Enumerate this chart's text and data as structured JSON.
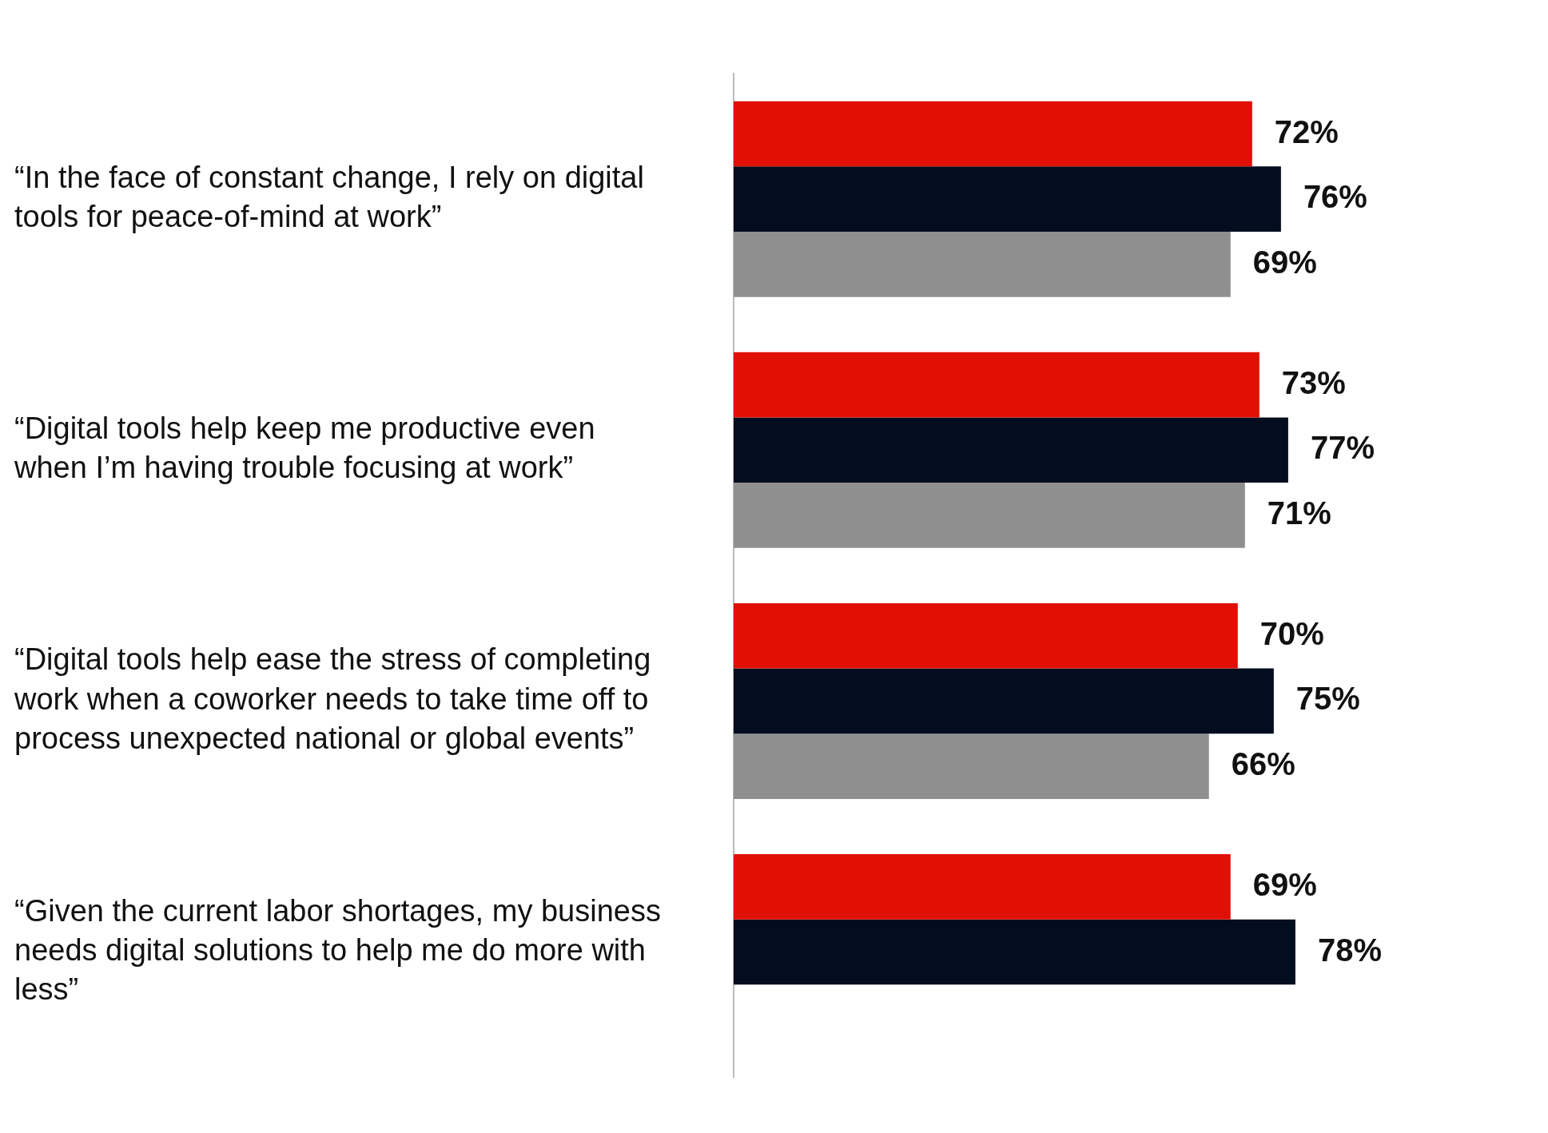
{
  "chart_data": {
    "type": "bar",
    "orientation": "horizontal",
    "categories": [
      "“In the face of constant change, I rely on digital tools for peace-of-mind at work”",
      "“Digital tools help keep me productive even when I’m having trouble focusing at work”",
      "“Digital tools help ease the stress of completing work when a coworker needs to take time off to process unexpected national or global events”",
      "“Given the current labor shortages, my business needs digital solutions to help me do more with less”"
    ],
    "series": [
      {
        "color": "#e01006",
        "values": [
          72,
          73,
          70,
          69
        ],
        "value_labels": [
          "72%",
          "73%",
          "70%",
          "69%"
        ]
      },
      {
        "color": "#020d1f",
        "values": [
          76,
          77,
          75,
          78
        ],
        "value_labels": [
          "76%",
          "77%",
          "75%",
          "78%"
        ]
      },
      {
        "color": "#8f8f8f",
        "values": [
          69,
          71,
          66,
          null
        ],
        "value_labels": [
          "69%",
          "71%",
          "66%",
          null
        ]
      }
    ],
    "grid": false,
    "legend": false
  }
}
